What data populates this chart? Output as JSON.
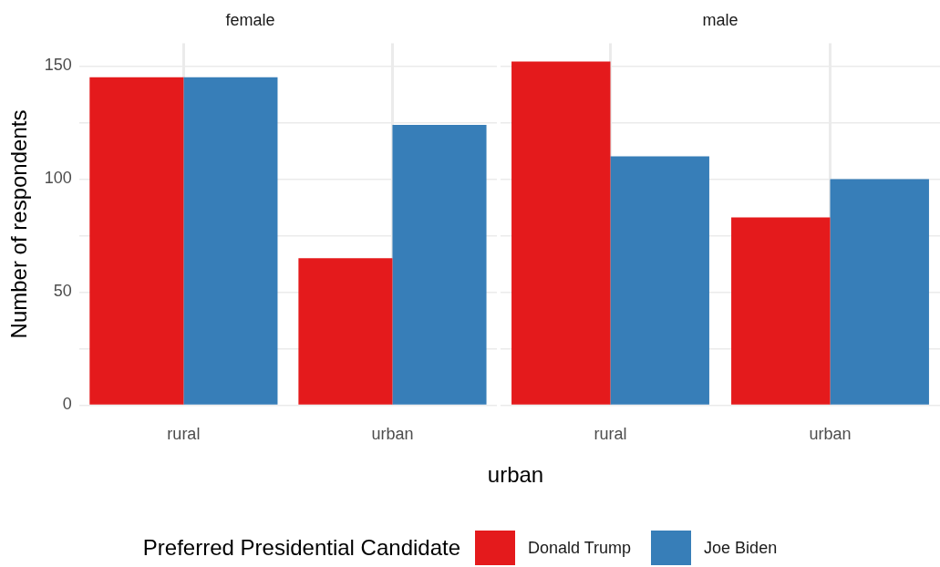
{
  "chart_data": [
    {
      "type": "bar",
      "title": "female",
      "xlabel": "urban",
      "ylabel": "Number of respondents",
      "legend_title": "Preferred Presidential Candidate",
      "legend": "bottom",
      "grid": true,
      "categories": [
        "rural",
        "urban"
      ],
      "series": [
        {
          "name": "Donald Trump",
          "color": "#e41a1c",
          "values": [
            145,
            65
          ]
        },
        {
          "name": "Joe Biden",
          "color": "#377eb8",
          "values": [
            145,
            124
          ]
        }
      ],
      "ylim": [
        0,
        160
      ],
      "yticks": [
        0,
        {
          "value": 25,
          "label": null
        },
        50,
        {
          "value": 75,
          "label": null
        },
        100,
        {
          "value": 125,
          "label": null
        },
        150
      ]
    },
    {
      "type": "bar",
      "title": "male",
      "grid": true,
      "tick_labels": "x",
      "categories": [
        "rural",
        "urban"
      ],
      "series": [
        {
          "color": "#e41a1c",
          "values": [
            152,
            83
          ]
        },
        {
          "color": "#377eb8",
          "values": [
            110,
            100
          ]
        }
      ],
      "ylim": [
        0,
        160
      ],
      "yticks": [
        0,
        {
          "value": 25,
          "label": null
        },
        50,
        {
          "value": 75,
          "label": null
        },
        100,
        {
          "value": 125,
          "label": null
        },
        150
      ]
    }
  ]
}
